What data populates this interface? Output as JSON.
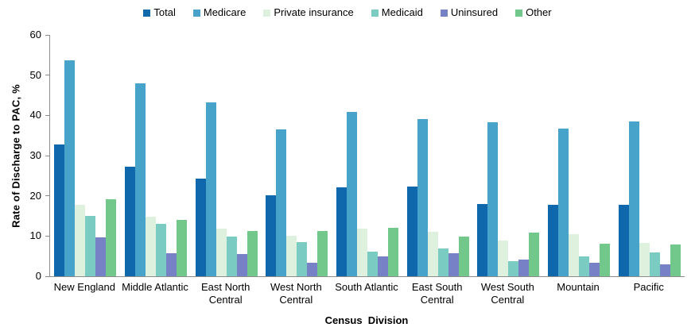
{
  "chart_data": {
    "type": "bar",
    "title": "",
    "xlabel": "Census  Division",
    "ylabel": "Rate of Discharge to PAC, %",
    "ylim": [
      0,
      60
    ],
    "y_ticks": [
      0,
      10,
      20,
      30,
      40,
      50,
      60
    ],
    "grid": false,
    "legend_position": "top-center",
    "axis_color": "#8c8c8c",
    "categories": [
      "New England",
      "Middle Atlantic",
      "East North Central",
      "West North Central",
      "South Atlantic",
      "East South Central",
      "West South Central",
      "Mountain",
      "Pacific"
    ],
    "series": [
      {
        "name": "Total",
        "color": "#0e68ab",
        "values": [
          32.8,
          27.3,
          24.3,
          20.2,
          22.2,
          22.4,
          17.9,
          17.7,
          17.7
        ]
      },
      {
        "name": "Medicare",
        "color": "#47a3c9",
        "values": [
          53.6,
          48.0,
          43.2,
          36.6,
          40.8,
          39.0,
          38.2,
          36.7,
          38.4
        ]
      },
      {
        "name": "Private insurance",
        "color": "#def1df",
        "values": [
          17.7,
          14.9,
          11.8,
          10.0,
          11.8,
          11.0,
          8.9,
          10.4,
          8.2
        ]
      },
      {
        "name": "Medicaid",
        "color": "#7accc3",
        "values": [
          15.0,
          13.0,
          9.8,
          8.5,
          6.1,
          6.9,
          3.7,
          5.0,
          6.0
        ]
      },
      {
        "name": "Uninsured",
        "color": "#7781c6",
        "values": [
          9.7,
          5.8,
          5.5,
          3.4,
          5.0,
          5.8,
          4.1,
          3.3,
          3.0
        ]
      },
      {
        "name": "Other",
        "color": "#72c78b",
        "values": [
          19.1,
          14.0,
          11.2,
          11.3,
          12.1,
          9.8,
          10.8,
          8.1,
          7.9
        ]
      }
    ]
  }
}
